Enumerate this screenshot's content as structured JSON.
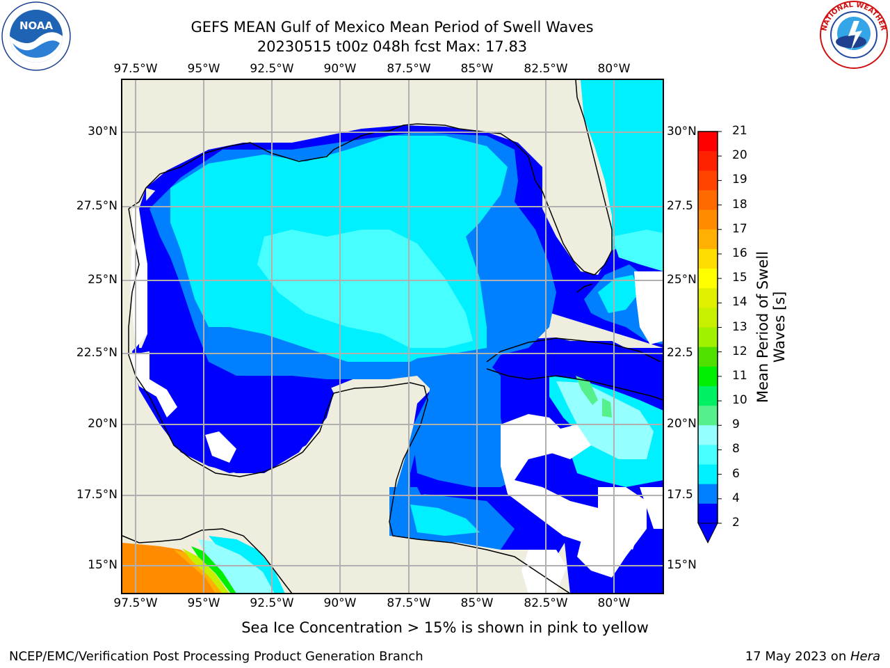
{
  "title": {
    "line1": "GEFS MEAN Gulf of Mexico Mean Period of Swell Waves",
    "line2": "20230515 t00z 048h fcst   Max: 17.83"
  },
  "logos": {
    "left": "noaa-logo",
    "right": "national-weather-service-logo"
  },
  "map": {
    "top_lon_labels": [
      "97.5°W",
      "95°W",
      "92.5°W",
      "90°W",
      "87.5°W",
      "85°W",
      "82.5°W",
      "80°W"
    ],
    "bottom_lon_labels": [
      "97.5°W",
      "95°W",
      "92.5°W",
      "90°W",
      "87.5°W",
      "85°W",
      "82.5°W",
      "80°W"
    ],
    "left_lat_labels": [
      "30°N",
      "27.5°N",
      "25°N",
      "22.5°N",
      "20°N",
      "17.5°N",
      "15°N"
    ],
    "right_lat_labels": [
      "30°N",
      "27.5",
      "25°N",
      "22.5",
      "20°N",
      "17.5",
      "15°N"
    ],
    "land_color": "#efedde",
    "grid_color": "#b0b0b0"
  },
  "colorbar": {
    "label": "Mean Period of Swell Waves [s]",
    "ticks": [
      "21",
      "20",
      "19",
      "18",
      "17",
      "16",
      "15",
      "14",
      "13",
      "12",
      "11",
      "10",
      "9",
      "8",
      "6",
      "4",
      "2"
    ],
    "colors": [
      "#ff0000",
      "#ff2200",
      "#ff4400",
      "#ff6a00",
      "#ff8c00",
      "#ffb000",
      "#ffdd00",
      "#ffff00",
      "#e0f000",
      "#c6f000",
      "#a0f000",
      "#50e000",
      "#00ee00",
      "#00f064",
      "#55f08c",
      "#96ffff",
      "#48ffff",
      "#00f0ff",
      "#0080ff",
      "#0000ff"
    ]
  },
  "footer": {
    "note": "Sea Ice Concentration > 15% is shown in pink to yellow",
    "credit": "NCEP/EMC/Verification Post Processing Product Generation Branch",
    "date_prefix": "17 May 2023 on ",
    "date_machine": "Hera"
  }
}
